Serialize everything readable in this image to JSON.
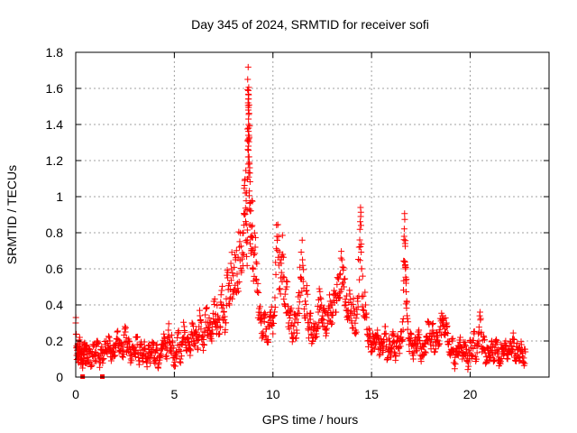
{
  "chart_data": {
    "type": "scatter",
    "title": "Day 345 of 2024, SRMTID for receiver sofi",
    "xlabel": "GPS time / hours",
    "ylabel": "SRMTID / TECUs",
    "xlim": [
      0,
      24
    ],
    "ylim": [
      0,
      1.8
    ],
    "xticks": [
      0,
      5,
      10,
      15,
      20
    ],
    "xtick_labels": [
      "0",
      "5",
      "10",
      "15",
      "20"
    ],
    "yticks": [
      0,
      0.2,
      0.4,
      0.6,
      0.8,
      1,
      1.2,
      1.4,
      1.6,
      1.8
    ],
    "ytick_labels": [
      "0",
      "0.2",
      "0.4",
      "0.6",
      "0.8",
      "1",
      "1.2",
      "1.4",
      "1.6",
      "1.8"
    ],
    "grid": true,
    "marker": "+",
    "color": "#ff0000",
    "series": [
      {
        "name": "SRMTID",
        "points": [
          [
            0.0,
            0.3
          ],
          [
            0.05,
            0.12
          ],
          [
            0.1,
            0.18
          ],
          [
            0.15,
            0.08
          ],
          [
            0.2,
            0.22
          ],
          [
            0.25,
            0.1
          ],
          [
            0.3,
            0.15
          ],
          [
            0.35,
            0.05
          ],
          [
            0.4,
            0.13
          ],
          [
            0.45,
            0.19
          ],
          [
            0.5,
            0.09
          ],
          [
            0.55,
            0.16
          ],
          [
            0.6,
            0.11
          ],
          [
            0.7,
            0.14
          ],
          [
            0.8,
            0.07
          ],
          [
            0.9,
            0.17
          ],
          [
            1.0,
            0.12
          ],
          [
            1.1,
            0.2
          ],
          [
            1.2,
            0.08
          ],
          [
            1.3,
            0.15
          ],
          [
            1.4,
            0.1
          ],
          [
            1.5,
            0.18
          ],
          [
            1.6,
            0.13
          ],
          [
            1.7,
            0.22
          ],
          [
            1.8,
            0.09
          ],
          [
            1.9,
            0.16
          ],
          [
            2.0,
            0.12
          ],
          [
            2.1,
            0.25
          ],
          [
            2.2,
            0.14
          ],
          [
            2.3,
            0.19
          ],
          [
            2.4,
            0.11
          ],
          [
            2.5,
            0.28
          ],
          [
            2.6,
            0.15
          ],
          [
            2.7,
            0.2
          ],
          [
            2.8,
            0.1
          ],
          [
            2.9,
            0.17
          ],
          [
            3.0,
            0.13
          ],
          [
            3.1,
            0.22
          ],
          [
            3.2,
            0.09
          ],
          [
            3.3,
            0.18
          ],
          [
            3.4,
            0.12
          ],
          [
            3.5,
            0.16
          ],
          [
            3.6,
            0.08
          ],
          [
            3.7,
            0.14
          ],
          [
            3.8,
            0.11
          ],
          [
            3.9,
            0.19
          ],
          [
            4.0,
            0.1
          ],
          [
            4.1,
            0.15
          ],
          [
            4.2,
            0.07
          ],
          [
            4.3,
            0.13
          ],
          [
            4.4,
            0.18
          ],
          [
            4.5,
            0.22
          ],
          [
            4.6,
            0.12
          ],
          [
            4.7,
            0.26
          ],
          [
            4.8,
            0.16
          ],
          [
            4.9,
            0.2
          ],
          [
            5.0,
            0.06
          ],
          [
            5.1,
            0.14
          ],
          [
            5.2,
            0.24
          ],
          [
            5.3,
            0.1
          ],
          [
            5.4,
            0.18
          ],
          [
            5.5,
            0.28
          ],
          [
            5.6,
            0.15
          ],
          [
            5.7,
            0.22
          ],
          [
            5.8,
            0.12
          ],
          [
            5.9,
            0.3
          ],
          [
            6.0,
            0.2
          ],
          [
            6.1,
            0.26
          ],
          [
            6.2,
            0.16
          ],
          [
            6.3,
            0.34
          ],
          [
            6.4,
            0.22
          ],
          [
            6.5,
            0.18
          ],
          [
            6.6,
            0.38
          ],
          [
            6.7,
            0.26
          ],
          [
            6.8,
            0.3
          ],
          [
            6.9,
            0.2
          ],
          [
            7.0,
            0.42
          ],
          [
            7.1,
            0.28
          ],
          [
            7.2,
            0.34
          ],
          [
            7.3,
            0.24
          ],
          [
            7.4,
            0.48
          ],
          [
            7.5,
            0.36
          ],
          [
            7.6,
            0.3
          ],
          [
            7.7,
            0.55
          ],
          [
            7.8,
            0.4
          ],
          [
            7.9,
            0.6
          ],
          [
            8.0,
            0.46
          ],
          [
            8.1,
            0.65
          ],
          [
            8.2,
            0.52
          ],
          [
            8.3,
            0.72
          ],
          [
            8.4,
            0.58
          ],
          [
            8.5,
            0.8
          ],
          [
            8.55,
            0.9
          ],
          [
            8.6,
            1.02
          ],
          [
            8.65,
            0.85
          ],
          [
            8.7,
            0.76
          ],
          [
            8.72,
            1.65
          ],
          [
            8.74,
            1.52
          ],
          [
            8.75,
            1.48
          ],
          [
            8.76,
            1.43
          ],
          [
            8.77,
            1.38
          ],
          [
            8.78,
            1.34
          ],
          [
            8.8,
            1.19
          ],
          [
            8.82,
            1.16
          ],
          [
            8.85,
            0.92
          ],
          [
            8.9,
            0.7
          ],
          [
            8.95,
            0.84
          ],
          [
            9.0,
            0.6
          ],
          [
            9.1,
            0.72
          ],
          [
            9.2,
            0.48
          ],
          [
            9.3,
            0.38
          ],
          [
            9.4,
            0.3
          ],
          [
            9.5,
            0.25
          ],
          [
            9.6,
            0.34
          ],
          [
            9.7,
            0.2
          ],
          [
            9.8,
            0.28
          ],
          [
            9.9,
            0.36
          ],
          [
            10.0,
            0.24
          ],
          [
            10.1,
            0.44
          ],
          [
            10.2,
            0.78
          ],
          [
            10.3,
            0.62
          ],
          [
            10.4,
            0.55
          ],
          [
            10.5,
            0.68
          ],
          [
            10.6,
            0.4
          ],
          [
            10.7,
            0.5
          ],
          [
            10.8,
            0.3
          ],
          [
            10.9,
            0.36
          ],
          [
            11.0,
            0.22
          ],
          [
            11.1,
            0.3
          ],
          [
            11.2,
            0.26
          ],
          [
            11.3,
            0.38
          ],
          [
            11.4,
            0.55
          ],
          [
            11.5,
            0.65
          ],
          [
            11.6,
            0.34
          ],
          [
            11.7,
            0.48
          ],
          [
            11.8,
            0.26
          ],
          [
            11.9,
            0.32
          ],
          [
            12.0,
            0.2
          ],
          [
            12.1,
            0.28
          ],
          [
            12.2,
            0.24
          ],
          [
            12.3,
            0.36
          ],
          [
            12.4,
            0.44
          ],
          [
            12.5,
            0.3
          ],
          [
            12.6,
            0.38
          ],
          [
            12.7,
            0.26
          ],
          [
            12.8,
            0.34
          ],
          [
            12.9,
            0.42
          ],
          [
            13.0,
            0.3
          ],
          [
            13.1,
            0.48
          ],
          [
            13.2,
            0.36
          ],
          [
            13.3,
            0.55
          ],
          [
            13.4,
            0.44
          ],
          [
            13.5,
            0.65
          ],
          [
            13.6,
            0.5
          ],
          [
            13.7,
            0.4
          ],
          [
            13.8,
            0.34
          ],
          [
            13.9,
            0.46
          ],
          [
            14.0,
            0.3
          ],
          [
            14.1,
            0.38
          ],
          [
            14.2,
            0.24
          ],
          [
            14.3,
            0.42
          ],
          [
            14.4,
            0.76
          ],
          [
            14.45,
            0.89
          ],
          [
            14.5,
            0.6
          ],
          [
            14.6,
            0.34
          ],
          [
            14.7,
            0.4
          ],
          [
            14.8,
            0.2
          ],
          [
            14.9,
            0.26
          ],
          [
            15.0,
            0.14
          ],
          [
            15.1,
            0.22
          ],
          [
            15.2,
            0.18
          ],
          [
            15.3,
            0.26
          ],
          [
            15.4,
            0.12
          ],
          [
            15.5,
            0.2
          ],
          [
            15.6,
            0.16
          ],
          [
            15.7,
            0.28
          ],
          [
            15.8,
            0.1
          ],
          [
            15.9,
            0.18
          ],
          [
            16.0,
            0.14
          ],
          [
            16.1,
            0.24
          ],
          [
            16.2,
            0.12
          ],
          [
            16.3,
            0.2
          ],
          [
            16.4,
            0.16
          ],
          [
            16.5,
            0.22
          ],
          [
            16.6,
            0.26
          ],
          [
            16.65,
            0.78
          ],
          [
            16.7,
            0.74
          ],
          [
            16.72,
            0.6
          ],
          [
            16.75,
            0.52
          ],
          [
            16.8,
            0.34
          ],
          [
            16.9,
            0.18
          ],
          [
            17.0,
            0.24
          ],
          [
            17.1,
            0.12
          ],
          [
            17.2,
            0.2
          ],
          [
            17.3,
            0.16
          ],
          [
            17.4,
            0.26
          ],
          [
            17.5,
            0.1
          ],
          [
            17.6,
            0.18
          ],
          [
            17.7,
            0.14
          ],
          [
            17.8,
            0.22
          ],
          [
            17.9,
            0.3
          ],
          [
            18.0,
            0.18
          ],
          [
            18.1,
            0.26
          ],
          [
            18.2,
            0.14
          ],
          [
            18.3,
            0.22
          ],
          [
            18.4,
            0.18
          ],
          [
            18.5,
            0.28
          ],
          [
            18.6,
            0.34
          ],
          [
            18.7,
            0.24
          ],
          [
            18.8,
            0.3
          ],
          [
            18.9,
            0.18
          ],
          [
            19.0,
            0.12
          ],
          [
            19.1,
            0.2
          ],
          [
            19.2,
            0.08
          ],
          [
            19.3,
            0.16
          ],
          [
            19.4,
            0.12
          ],
          [
            19.5,
            0.22
          ],
          [
            19.6,
            0.1
          ],
          [
            19.7,
            0.18
          ],
          [
            19.8,
            0.14
          ],
          [
            19.9,
            0.08
          ],
          [
            20.0,
            0.2
          ],
          [
            20.1,
            0.12
          ],
          [
            20.2,
            0.24
          ],
          [
            20.3,
            0.1
          ],
          [
            20.4,
            0.18
          ],
          [
            20.5,
            0.36
          ],
          [
            20.6,
            0.14
          ],
          [
            20.7,
            0.22
          ],
          [
            20.8,
            0.08
          ],
          [
            20.9,
            0.16
          ],
          [
            21.0,
            0.12
          ],
          [
            21.1,
            0.2
          ],
          [
            21.2,
            0.1
          ],
          [
            21.3,
            0.18
          ],
          [
            21.4,
            0.14
          ],
          [
            21.5,
            0.08
          ],
          [
            21.6,
            0.16
          ],
          [
            21.7,
            0.12
          ],
          [
            21.8,
            0.2
          ],
          [
            21.9,
            0.1
          ],
          [
            22.0,
            0.17
          ],
          [
            22.1,
            0.13
          ],
          [
            22.2,
            0.21
          ],
          [
            22.3,
            0.09
          ],
          [
            22.4,
            0.15
          ],
          [
            22.5,
            0.11
          ],
          [
            22.6,
            0.18
          ],
          [
            22.7,
            0.08
          ],
          [
            22.8,
            0.14
          ]
        ]
      }
    ],
    "outliers_near_zero": [
      [
        0.35,
        0.0
      ],
      [
        1.35,
        0.0
      ]
    ]
  }
}
